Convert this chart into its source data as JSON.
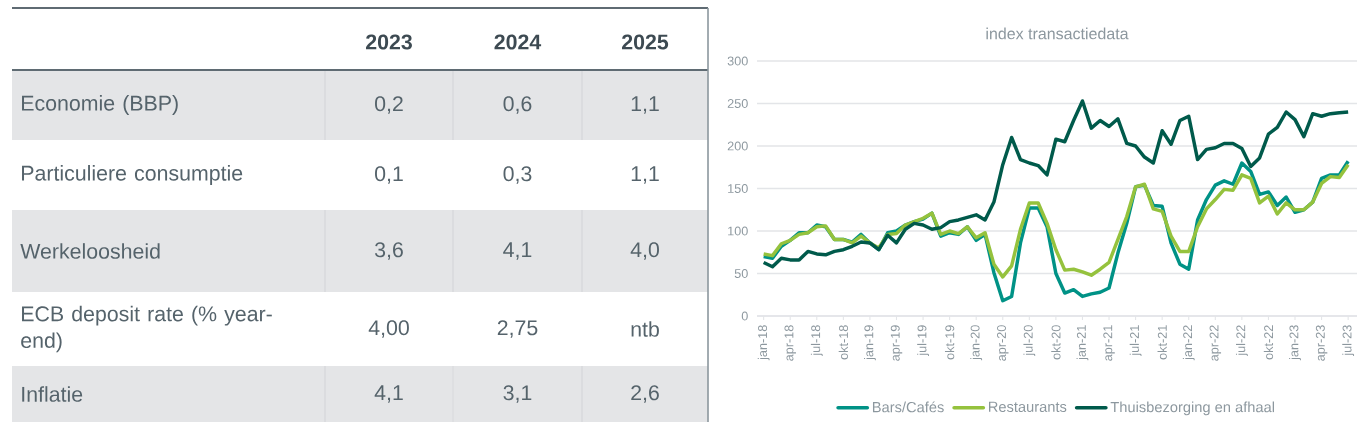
{
  "chart_data": [
    {
      "type": "other",
      "categories": [
        "2023",
        "2024",
        "2025"
      ],
      "y_categories": [
        "Economie (BBP)",
        "Particuliere consumptie",
        "Werkeloosheid",
        "ECB deposit rate (% year-end)",
        "Inflatie"
      ],
      "cell_labels": [
        [
          "0,2",
          "0,6",
          "1,1"
        ],
        [
          "0,1",
          "0,3",
          "1,1"
        ],
        [
          "3,6",
          "4,1",
          "4,0"
        ],
        [
          "4,00",
          "2,75",
          "ntb"
        ],
        [
          "4,1",
          "3,1",
          "2,6"
        ]
      ]
    },
    {
      "type": "line",
      "title": "index transactiedata",
      "categories": [
        "jan-18",
        null,
        null,
        "apr-18",
        null,
        null,
        "jul-18",
        null,
        null,
        "okt-18",
        null,
        null,
        "jan-19",
        null,
        null,
        "apr-19",
        null,
        null,
        "jul-19",
        null,
        null,
        "okt-19",
        null,
        null,
        "jan-20",
        null,
        null,
        "apr-20",
        null,
        null,
        "jul-20",
        null,
        null,
        "okt-20",
        null,
        null,
        "jan-21",
        null,
        null,
        "apr-21",
        null,
        null,
        "jul-21",
        null,
        null,
        "okt-21",
        null,
        null,
        "jan-22",
        null,
        null,
        "apr-22",
        null,
        null,
        "jul-22",
        null,
        null,
        "okt-22",
        null,
        null,
        "jan-23",
        null,
        null,
        "apr-23",
        null,
        null,
        "jul-23"
      ],
      "series": [
        {
          "name": "Bars/Cafés",
          "color": "#009286",
          "values": [
            70,
            68,
            82,
            89,
            98,
            98,
            107,
            105,
            90,
            90,
            87,
            96,
            86,
            78,
            98,
            100,
            107,
            111,
            114,
            121,
            94,
            98,
            96,
            105,
            89,
            96,
            51,
            18,
            23,
            86,
            127,
            127,
            105,
            50,
            27,
            31,
            23,
            26,
            28,
            33,
            74,
            109,
            152,
            154,
            130,
            129,
            86,
            61,
            55,
            113,
            137,
            154,
            159,
            155,
            180,
            170,
            143,
            146,
            130,
            140,
            122,
            125,
            134,
            162,
            166,
            166,
            182
          ]
        },
        {
          "name": "Restaurants",
          "color": "#95c23d",
          "values": [
            73,
            71,
            85,
            89,
            96,
            98,
            105,
            106,
            90,
            90,
            86,
            94,
            86,
            80,
            96,
            97,
            107,
            111,
            115,
            121,
            96,
            100,
            97,
            105,
            92,
            98,
            61,
            46,
            59,
            102,
            133,
            133,
            109,
            78,
            54,
            55,
            52,
            48,
            55,
            63,
            90,
            117,
            152,
            155,
            126,
            123,
            94,
            76,
            76,
            105,
            126,
            137,
            149,
            148,
            166,
            162,
            133,
            141,
            120,
            133,
            125,
            125,
            134,
            156,
            164,
            163,
            178
          ]
        },
        {
          "name": "Thuisbezorging en afhaal",
          "color": "#005a4b",
          "values": [
            63,
            58,
            68,
            66,
            66,
            76,
            73,
            72,
            76,
            78,
            82,
            87,
            86,
            78,
            95,
            86,
            102,
            109,
            107,
            102,
            104,
            111,
            113,
            116,
            119,
            113,
            134,
            178,
            210,
            184,
            180,
            177,
            166,
            208,
            205,
            230,
            253,
            221,
            230,
            223,
            232,
            203,
            200,
            187,
            180,
            218,
            202,
            230,
            235,
            184,
            196,
            198,
            203,
            203,
            197,
            176,
            186,
            214,
            222,
            240,
            231,
            211,
            238,
            235,
            238,
            239,
            240
          ]
        }
      ],
      "ylim": [
        0,
        300
      ],
      "yticks": [
        0,
        50,
        100,
        150,
        200,
        250,
        300
      ],
      "grid": "y",
      "legend": "bottom",
      "marker": "none",
      "line_style": "solid"
    }
  ]
}
